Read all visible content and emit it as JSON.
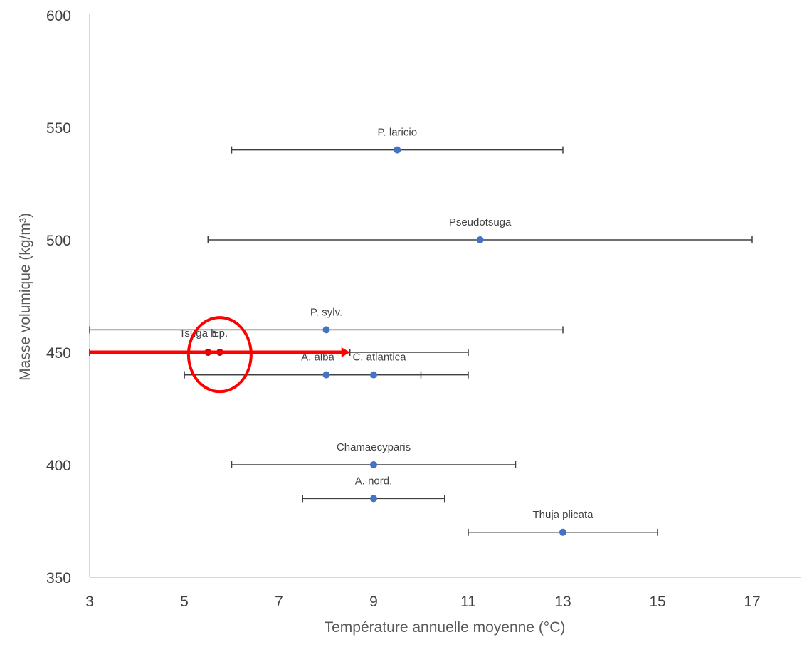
{
  "chart_data": {
    "type": "scatter",
    "title": "",
    "xlabel": "Température annuelle moyenne (°C)",
    "ylabel": "Masse volumique (kg/m³)",
    "xlim": [
      3,
      17
    ],
    "ylim": [
      350,
      600
    ],
    "xticks": [
      3,
      5,
      7,
      9,
      11,
      13,
      15,
      17
    ],
    "yticks": [
      350,
      400,
      450,
      500,
      550,
      600
    ],
    "grid": false,
    "colors": {
      "point": "#4472C4",
      "errorbar": "#404040",
      "highlight_point": "#C00000",
      "annotation": "#FF0000",
      "axis": "#BFBFBF"
    },
    "points": [
      {
        "label": "P. laricio",
        "x": 9.5,
        "y": 540,
        "xerr": [
          6,
          13
        ]
      },
      {
        "label": "Pseudotsuga",
        "x": 11.25,
        "y": 500,
        "xerr": [
          5.5,
          17
        ]
      },
      {
        "label": "P. sylv.",
        "x": 8,
        "y": 460,
        "xerr": [
          3,
          13
        ]
      },
      {
        "label": "Tsuga h.",
        "x": 5.5,
        "y": 450,
        "xerr": [
          3,
          8.5
        ],
        "highlight": true
      },
      {
        "label": "Ep.",
        "x": 5.75,
        "y": 450,
        "xerr": [
          3,
          11
        ],
        "highlight": true
      },
      {
        "label": "A. alba",
        "x": 8,
        "y": 440,
        "xerr": [
          5,
          10
        ]
      },
      {
        "label": "C. atlantica",
        "x": 9,
        "y": 440,
        "xerr": [
          5,
          11
        ]
      },
      {
        "label": "Chamaecyparis",
        "x": 9,
        "y": 400,
        "xerr": [
          6,
          12
        ]
      },
      {
        "label": "A. nord.",
        "x": 9,
        "y": 385,
        "xerr": [
          7.5,
          10.5
        ]
      },
      {
        "label": "Thuja plicata",
        "x": 13,
        "y": 370,
        "xerr": [
          11,
          15
        ]
      }
    ],
    "annotations": {
      "arrow": {
        "from": [
          3,
          450
        ],
        "to": [
          8.5,
          450
        ],
        "color": "#FF0000"
      },
      "circle": {
        "center": [
          5.75,
          449
        ],
        "color": "#FF0000"
      }
    }
  }
}
